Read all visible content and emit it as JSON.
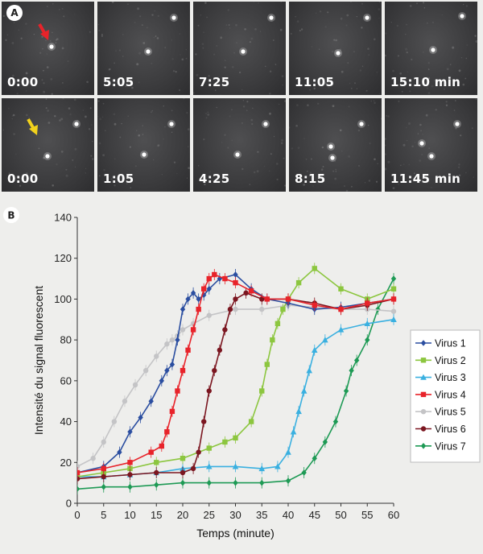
{
  "panel_a": {
    "label": "A",
    "rows": [
      {
        "times": [
          "0:00",
          "5:05",
          "7:25",
          "11:05",
          "15:10 min"
        ],
        "arrow_color": "#e8232a"
      },
      {
        "times": [
          "0:00",
          "1:05",
          "4:25",
          "8:15",
          "11:45 min"
        ],
        "arrow_color": "#f2d21c"
      }
    ]
  },
  "chart_data": {
    "panel_label": "B",
    "type": "line",
    "title": "",
    "xlabel": "Temps (minute)",
    "ylabel": "Intensité du signal fluorescent",
    "xlim": [
      0,
      60
    ],
    "ylim": [
      0,
      140
    ],
    "xticks": [
      0,
      5,
      10,
      15,
      20,
      25,
      30,
      35,
      40,
      45,
      50,
      55,
      60
    ],
    "yticks": [
      0,
      20,
      40,
      60,
      80,
      100,
      120,
      140
    ],
    "legend_position": "right",
    "series": [
      {
        "name": "Virus 1",
        "color": "#2b4ea0",
        "marker": "diamond",
        "x": [
          0,
          5,
          8,
          10,
          12,
          14,
          16,
          17,
          18,
          19,
          20,
          21,
          22,
          23,
          24,
          25,
          27,
          30,
          33,
          36,
          40,
          45,
          50,
          55,
          60
        ],
        "y": [
          15,
          18,
          25,
          35,
          42,
          50,
          60,
          65,
          68,
          80,
          95,
          100,
          103,
          100,
          102,
          105,
          110,
          112,
          105,
          100,
          98,
          95,
          96,
          98,
          100
        ]
      },
      {
        "name": "Virus 2",
        "color": "#8cc63f",
        "marker": "square",
        "x": [
          0,
          5,
          10,
          15,
          20,
          25,
          28,
          30,
          33,
          35,
          36,
          37,
          38,
          39,
          40,
          42,
          45,
          50,
          55,
          60
        ],
        "y": [
          13,
          15,
          17,
          20,
          22,
          27,
          30,
          32,
          40,
          55,
          68,
          80,
          88,
          95,
          100,
          108,
          115,
          105,
          100,
          105
        ]
      },
      {
        "name": "Virus 3",
        "color": "#3ab0e0",
        "marker": "triangle",
        "x": [
          0,
          5,
          10,
          15,
          20,
          25,
          30,
          35,
          38,
          40,
          41,
          42,
          43,
          44,
          45,
          47,
          50,
          55,
          60
        ],
        "y": [
          13,
          13,
          14,
          15,
          17,
          18,
          18,
          17,
          18,
          25,
          35,
          45,
          55,
          65,
          75,
          80,
          85,
          88,
          90
        ]
      },
      {
        "name": "Virus 4",
        "color": "#e8232a",
        "marker": "square",
        "x": [
          0,
          5,
          10,
          14,
          16,
          17,
          18,
          19,
          20,
          21,
          22,
          23,
          24,
          25,
          26,
          28,
          30,
          33,
          36,
          40,
          45,
          50,
          55,
          60
        ],
        "y": [
          15,
          17,
          20,
          25,
          28,
          35,
          45,
          55,
          65,
          75,
          85,
          95,
          105,
          110,
          112,
          110,
          108,
          104,
          100,
          100,
          97,
          95,
          98,
          100
        ]
      },
      {
        "name": "Virus 5",
        "color": "#c4c4c6",
        "marker": "circle",
        "x": [
          0,
          3,
          5,
          7,
          9,
          11,
          13,
          15,
          17,
          18,
          19,
          20,
          22,
          25,
          30,
          35,
          40,
          45,
          50,
          55,
          60
        ],
        "y": [
          18,
          22,
          30,
          40,
          50,
          58,
          65,
          72,
          78,
          80,
          82,
          85,
          88,
          92,
          95,
          95,
          97,
          96,
          95,
          95,
          94
        ]
      },
      {
        "name": "Virus 6",
        "color": "#7b1620",
        "marker": "circle",
        "x": [
          0,
          5,
          10,
          15,
          20,
          22,
          23,
          24,
          25,
          26,
          27,
          28,
          29,
          30,
          32,
          35,
          40,
          45,
          50,
          55,
          60
        ],
        "y": [
          12,
          13,
          14,
          15,
          15,
          17,
          25,
          40,
          55,
          65,
          75,
          85,
          95,
          100,
          103,
          100,
          100,
          98,
          95,
          97,
          100
        ]
      },
      {
        "name": "Virus 7",
        "color": "#1e9a55",
        "marker": "diamond",
        "x": [
          0,
          5,
          10,
          15,
          20,
          25,
          30,
          35,
          40,
          43,
          45,
          47,
          49,
          51,
          52,
          53,
          55,
          57,
          60
        ],
        "y": [
          7,
          8,
          8,
          9,
          10,
          10,
          10,
          10,
          11,
          15,
          22,
          30,
          40,
          55,
          65,
          70,
          80,
          95,
          110
        ]
      }
    ]
  }
}
